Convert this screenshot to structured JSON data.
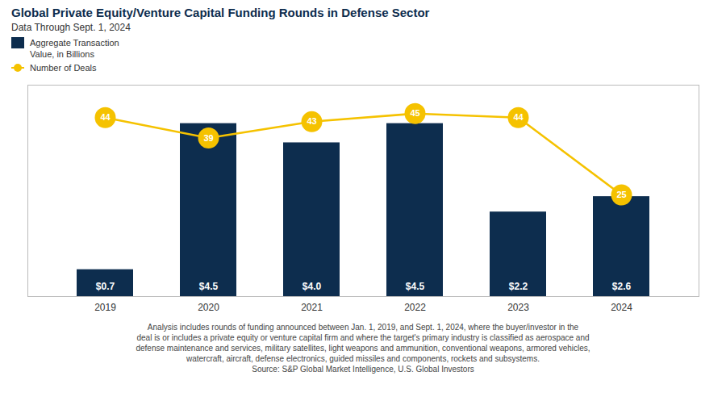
{
  "chart_data": {
    "type": "bar",
    "title": "Global Private Equity/Venture Capital Funding Rounds in Defense Sector",
    "subtitle": "Data Through Sept. 1, 2024",
    "categories": [
      "2019",
      "2020",
      "2021",
      "2022",
      "2023",
      "2024"
    ],
    "series": [
      {
        "name": "Aggregate Transaction\nValue, in Billions",
        "type": "bar",
        "color": "#0d2d4e",
        "values": [
          0.7,
          4.5,
          4.0,
          4.5,
          2.2,
          2.6
        ],
        "value_labels": [
          "$0.7",
          "$4.5",
          "$4.0",
          "$4.5",
          "$2.2",
          "$2.6"
        ]
      },
      {
        "name": "Number of Deals",
        "type": "line",
        "axis": "y2",
        "color": "#f5c200",
        "marker": "circle",
        "values": [
          44,
          39,
          43,
          45,
          44,
          25
        ]
      }
    ],
    "ylim": [
      0,
      5.5
    ],
    "y2lim": [
      0,
      52
    ],
    "data_labels": true,
    "tick_labels": "x",
    "grid": false,
    "legend": "upper left",
    "annotations": [
      "Analysis includes rounds of funding announced between Jan. 1, 2019, and Sept. 1, 2024, where the buyer/investor in the",
      "deal is or includes a private equity or venture capital firm and where the target's primary industry is classified as aerospace and",
      "defense maintenance and services, military satellites, light weapons and ammunition, conventional weapons, armored vehicles,",
      "watercraft, aircraft, defense electronics, guided missiles and components, rockets and subsystems.",
      "Source: S&P Global Market Intelligence, U.S. Global Investors"
    ]
  }
}
